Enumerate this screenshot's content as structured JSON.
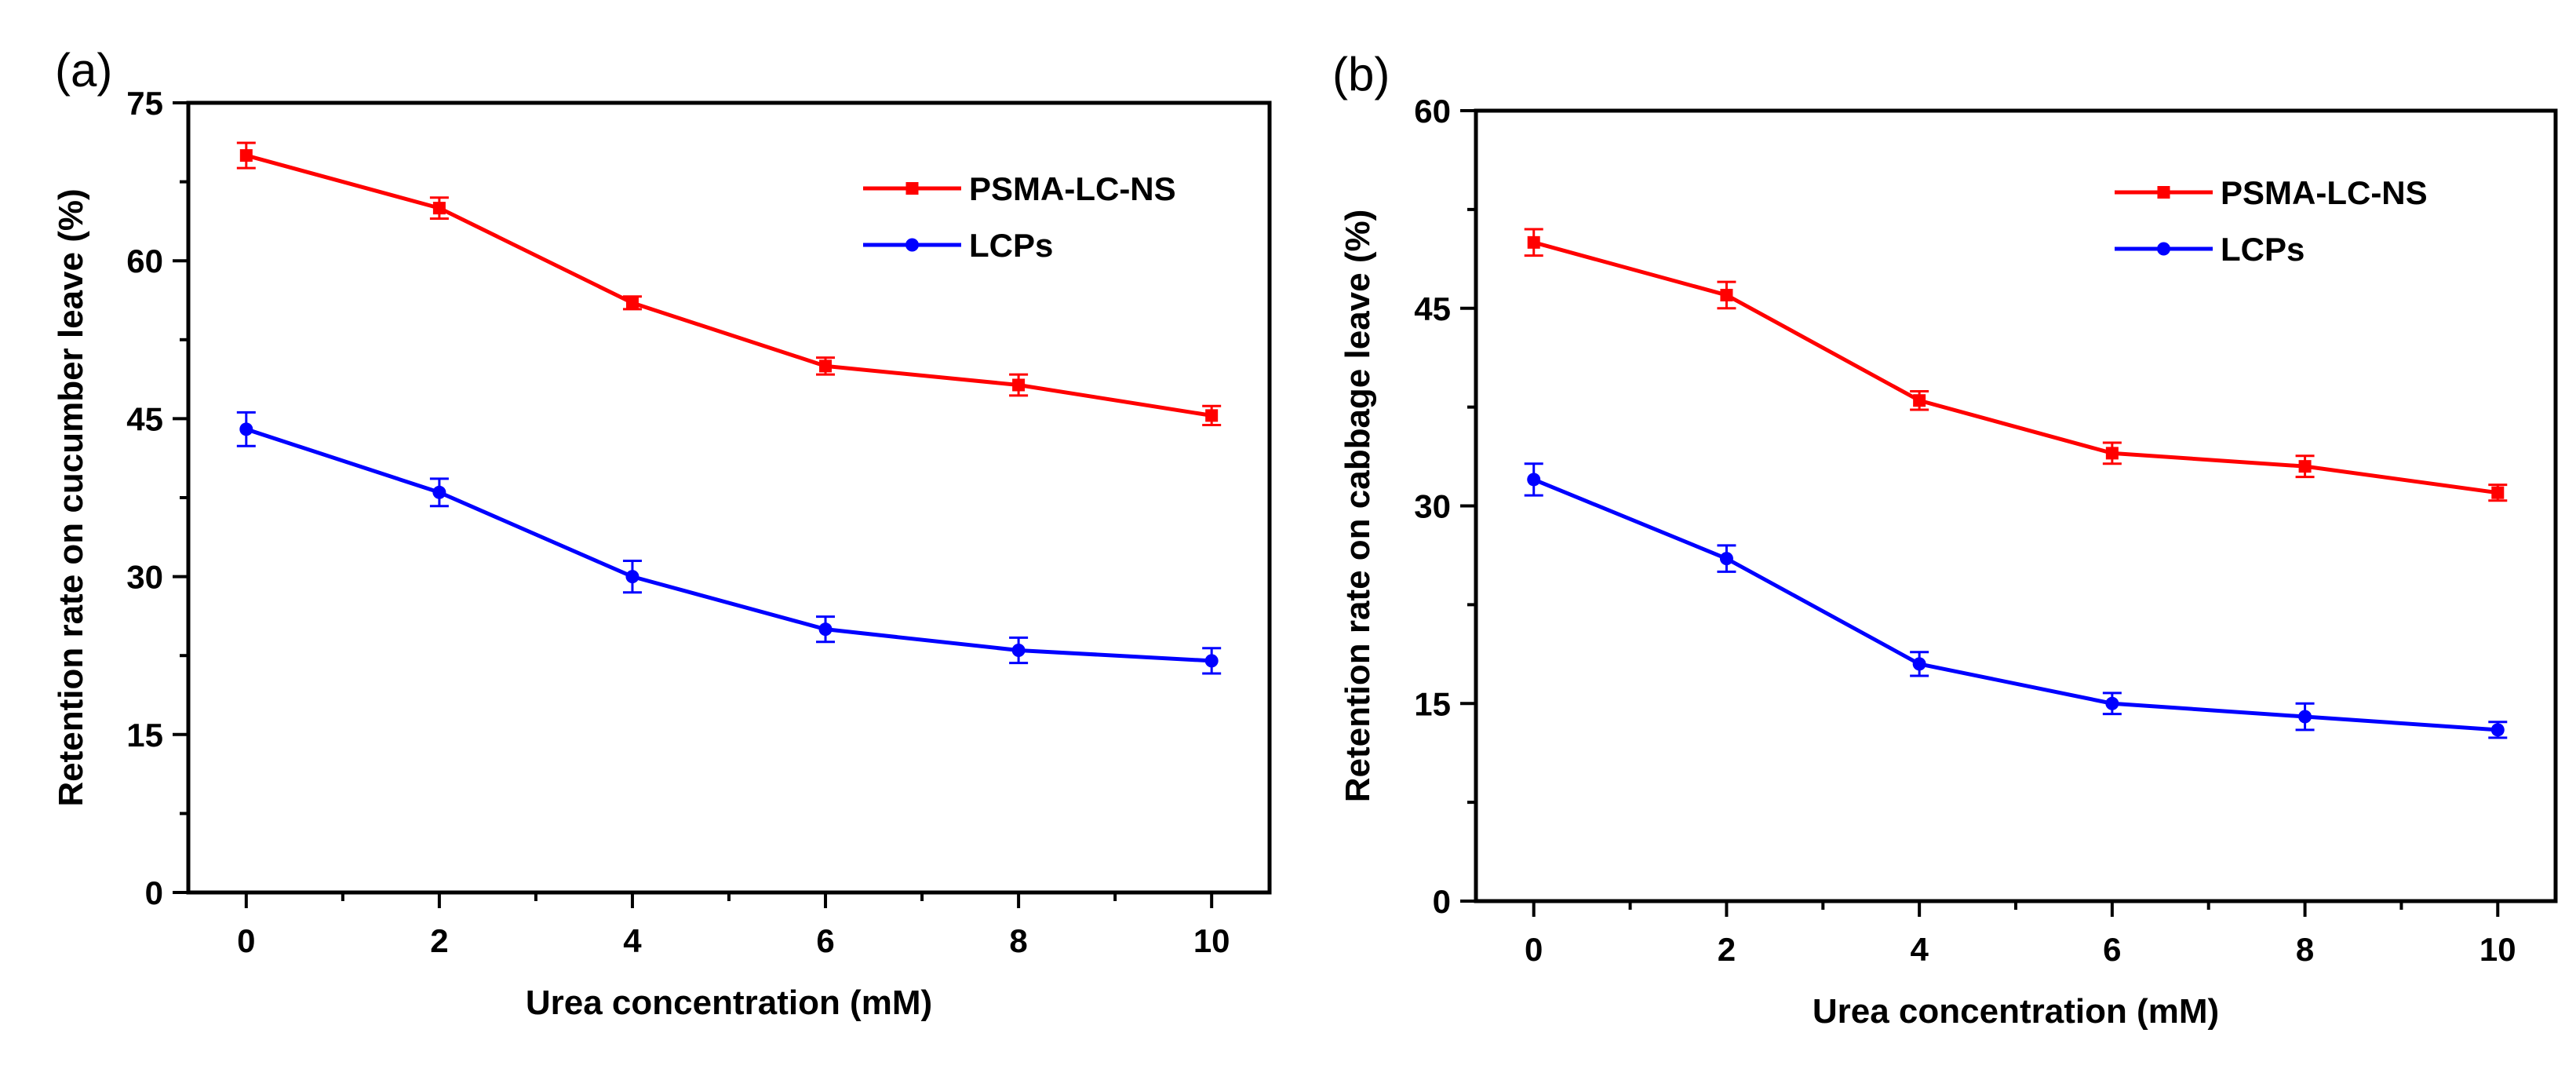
{
  "chart_data": [
    {
      "panel_label": "(a)",
      "type": "line",
      "title": "",
      "xlabel": "Urea concentration (mM)",
      "ylabel": "Retention rate on cucumber leave (%)",
      "xlim": [
        -0.6,
        10.6
      ],
      "ylim": [
        0,
        75
      ],
      "xticks": [
        0,
        2,
        4,
        6,
        8,
        10
      ],
      "yticks": [
        0,
        15,
        30,
        45,
        60,
        75
      ],
      "legend_position": "top-right",
      "x": [
        0,
        2,
        4,
        6,
        8,
        10
      ],
      "series": [
        {
          "name": "PSMA-LC-NS",
          "color": "#ff0000",
          "marker": "square",
          "values": [
            70,
            65,
            56,
            50,
            48.2,
            45.3
          ],
          "errors": [
            1.2,
            1.0,
            0.6,
            0.8,
            1.0,
            0.9
          ]
        },
        {
          "name": "LCPs",
          "color": "#0000ff",
          "marker": "circle",
          "values": [
            44,
            38,
            30,
            25,
            23,
            22
          ],
          "errors": [
            1.6,
            1.3,
            1.5,
            1.2,
            1.2,
            1.2
          ]
        }
      ]
    },
    {
      "panel_label": "(b)",
      "type": "line",
      "title": "",
      "xlabel": "Urea concentration (mM)",
      "ylabel": "Retention rate on cabbage leave (%)",
      "xlim": [
        -0.6,
        10.6
      ],
      "ylim": [
        0,
        60
      ],
      "xticks": [
        0,
        2,
        4,
        6,
        8,
        10
      ],
      "yticks": [
        0,
        15,
        30,
        45,
        60
      ],
      "legend_position": "top-right",
      "x": [
        0,
        2,
        4,
        6,
        8,
        10
      ],
      "series": [
        {
          "name": "PSMA-LC-NS",
          "color": "#ff0000",
          "marker": "square",
          "values": [
            50,
            46,
            38,
            34,
            33,
            31
          ],
          "errors": [
            1.0,
            1.0,
            0.7,
            0.8,
            0.8,
            0.6
          ]
        },
        {
          "name": "LCPs",
          "color": "#0000ff",
          "marker": "circle",
          "values": [
            32,
            26,
            18,
            15,
            14,
            13
          ],
          "errors": [
            1.2,
            1.0,
            0.9,
            0.8,
            1.0,
            0.6
          ]
        }
      ]
    }
  ]
}
